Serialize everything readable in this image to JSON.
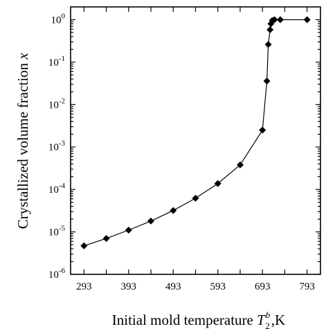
{
  "chart_data": {
    "type": "line",
    "xlabel": "Initial mold temperature",
    "xlabel_symbol": "T",
    "xlabel_superscript": "b",
    "xlabel_subscript": "2",
    "xlabel_unit": ",K",
    "ylabel": "Crystallized volume fraction",
    "ylabel_symbol": "x",
    "xlim": [
      263,
      823
    ],
    "ylim": [
      1e-06,
      2
    ],
    "yscale": "log",
    "grid": false,
    "marker": "diamond",
    "color": "#000000",
    "x_ticks": [
      293,
      343,
      393,
      443,
      493,
      543,
      593,
      643,
      693,
      743,
      793
    ],
    "x_tick_labels": [
      "293",
      "393",
      "493",
      "593",
      "693",
      "793"
    ],
    "x_tick_label_values": [
      293,
      393,
      493,
      593,
      693,
      793
    ],
    "y_tick_bases": [
      "10",
      "10",
      "10",
      "10",
      "10",
      "10",
      "10"
    ],
    "y_tick_exponents": [
      "-6",
      "-5",
      "-4",
      "-3",
      "-2",
      "-1",
      "0"
    ],
    "y_tick_values": [
      1e-06,
      1e-05,
      0.0001,
      0.001,
      0.01,
      0.1,
      1
    ],
    "series": [
      {
        "x": [
          293,
          343,
          393,
          443,
          493,
          543,
          593,
          643,
          693,
          703,
          706,
          710,
          712,
          715,
          720,
          733,
          793
        ],
        "values": [
          4.7e-06,
          7e-06,
          1.1e-05,
          1.8e-05,
          3.2e-05,
          6.2e-05,
          0.000138,
          0.00038,
          0.0025,
          0.036,
          0.26,
          0.58,
          0.8,
          0.96,
          1.0,
          1.0,
          1.0
        ]
      }
    ]
  }
}
